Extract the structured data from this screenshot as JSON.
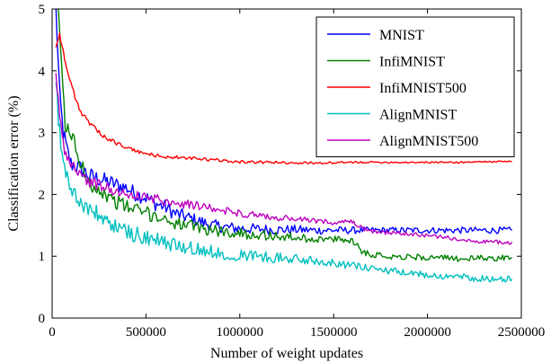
{
  "chart_data": {
    "type": "line",
    "xlabel": "Number of weight updates",
    "ylabel": "Classification error (%)",
    "xlim": [
      0,
      2500000
    ],
    "ylim": [
      0,
      5
    ],
    "xticks": [
      0,
      500000,
      1000000,
      1500000,
      2000000,
      2500000
    ],
    "xtick_labels": [
      "0",
      "500000",
      "1000000",
      "1500000",
      "2000000",
      "2500000"
    ],
    "yticks": [
      0,
      1,
      2,
      3,
      4,
      5
    ],
    "ytick_labels": [
      "0",
      "1",
      "2",
      "3",
      "4",
      "5"
    ],
    "grid": false,
    "legend_position": "top-right",
    "series": [
      {
        "name": "MNIST",
        "color": "#0000ff",
        "noise": 0.15,
        "x": [
          20000,
          40000,
          60000,
          80000,
          100000,
          130000,
          160000,
          200000,
          250000,
          300000,
          350000,
          400000,
          450000,
          500000,
          550000,
          600000,
          650000,
          700000,
          750000,
          800000,
          850000,
          900000,
          950000,
          1000000,
          1100000,
          1200000,
          1300000,
          1400000,
          1500000,
          1600000,
          1700000,
          1800000,
          1900000,
          2000000,
          2100000,
          2200000,
          2300000,
          2400000,
          2450000
        ],
        "y": [
          5.0,
          3.6,
          3.0,
          2.7,
          2.5,
          2.45,
          2.4,
          2.3,
          2.25,
          2.2,
          2.15,
          2.1,
          2.0,
          1.95,
          1.85,
          1.8,
          1.7,
          1.65,
          1.6,
          1.55,
          1.5,
          1.48,
          1.46,
          1.45,
          1.44,
          1.43,
          1.43,
          1.42,
          1.42,
          1.42,
          1.42,
          1.42,
          1.42,
          1.42,
          1.42,
          1.42,
          1.42,
          1.42,
          1.42
        ]
      },
      {
        "name": "InfiMNIST",
        "color": "#008000",
        "noise": 0.14,
        "x": [
          30000,
          50000,
          70000,
          90000,
          110000,
          150000,
          200000,
          300000,
          400000,
          500000,
          600000,
          700000,
          800000,
          900000,
          1000000,
          1100000,
          1200000,
          1300000,
          1400000,
          1500000,
          1600000,
          1620000,
          1650000,
          1700000,
          1800000,
          1900000,
          2000000,
          2100000,
          2200000,
          2300000,
          2400000,
          2450000
        ],
        "y": [
          5.0,
          4.2,
          3.0,
          3.1,
          2.9,
          2.5,
          2.2,
          1.95,
          1.8,
          1.7,
          1.6,
          1.5,
          1.45,
          1.4,
          1.37,
          1.35,
          1.32,
          1.3,
          1.28,
          1.27,
          1.26,
          1.2,
          1.08,
          1.03,
          1.0,
          0.99,
          0.98,
          0.97,
          0.96,
          0.97,
          0.97,
          0.98
        ]
      },
      {
        "name": "InfiMNIST500",
        "color": "#ff0000",
        "noise": 0.04,
        "x": [
          20000,
          40000,
          60000,
          80000,
          100000,
          130000,
          160000,
          200000,
          250000,
          300000,
          350000,
          400000,
          450000,
          500000,
          550000,
          600000,
          650000,
          700000,
          750000,
          800000,
          900000,
          1000000,
          1100000,
          1200000,
          1300000,
          1400000,
          1500000,
          1600000,
          1700000,
          1800000,
          1900000,
          2000000,
          2100000,
          2200000,
          2300000,
          2400000,
          2450000
        ],
        "y": [
          4.4,
          4.6,
          4.3,
          4.0,
          3.8,
          3.5,
          3.3,
          3.15,
          3.0,
          2.9,
          2.82,
          2.75,
          2.7,
          2.66,
          2.63,
          2.61,
          2.6,
          2.59,
          2.58,
          2.57,
          2.55,
          2.53,
          2.52,
          2.52,
          2.51,
          2.51,
          2.51,
          2.52,
          2.52,
          2.52,
          2.52,
          2.52,
          2.52,
          2.52,
          2.53,
          2.53,
          2.53
        ]
      },
      {
        "name": "AlignMNIST",
        "color": "#00bfbf",
        "noise": 0.16,
        "x": [
          20000,
          40000,
          60000,
          80000,
          100000,
          130000,
          160000,
          200000,
          250000,
          300000,
          350000,
          400000,
          500000,
          600000,
          700000,
          800000,
          900000,
          1000000,
          1100000,
          1200000,
          1300000,
          1400000,
          1500000,
          1600000,
          1700000,
          1800000,
          1900000,
          2000000,
          2100000,
          2200000,
          2300000,
          2400000,
          2450000
        ],
        "y": [
          3.8,
          3.0,
          2.5,
          2.3,
          2.1,
          1.95,
          1.85,
          1.75,
          1.65,
          1.55,
          1.45,
          1.4,
          1.3,
          1.22,
          1.15,
          1.1,
          1.05,
          1.02,
          1.0,
          0.98,
          0.95,
          0.93,
          0.9,
          0.85,
          0.8,
          0.76,
          0.72,
          0.7,
          0.68,
          0.66,
          0.64,
          0.62,
          0.63
        ]
      },
      {
        "name": "AlignMNIST500",
        "color": "#bf00bf",
        "noise": 0.1,
        "x": [
          20000,
          40000,
          60000,
          80000,
          100000,
          130000,
          160000,
          200000,
          250000,
          300000,
          350000,
          400000,
          500000,
          600000,
          700000,
          800000,
          900000,
          1000000,
          1100000,
          1200000,
          1300000,
          1400000,
          1500000,
          1600000,
          1650000,
          1700000,
          1800000,
          1900000,
          2000000,
          2100000,
          2200000,
          2300000,
          2400000,
          2450000
        ],
        "y": [
          3.9,
          3.3,
          2.8,
          2.6,
          2.5,
          2.4,
          2.3,
          2.2,
          2.15,
          2.1,
          2.05,
          2.0,
          1.95,
          1.9,
          1.85,
          1.8,
          1.75,
          1.7,
          1.65,
          1.62,
          1.6,
          1.57,
          1.55,
          1.55,
          1.45,
          1.4,
          1.38,
          1.36,
          1.33,
          1.3,
          1.27,
          1.24,
          1.22,
          1.23
        ]
      }
    ]
  }
}
